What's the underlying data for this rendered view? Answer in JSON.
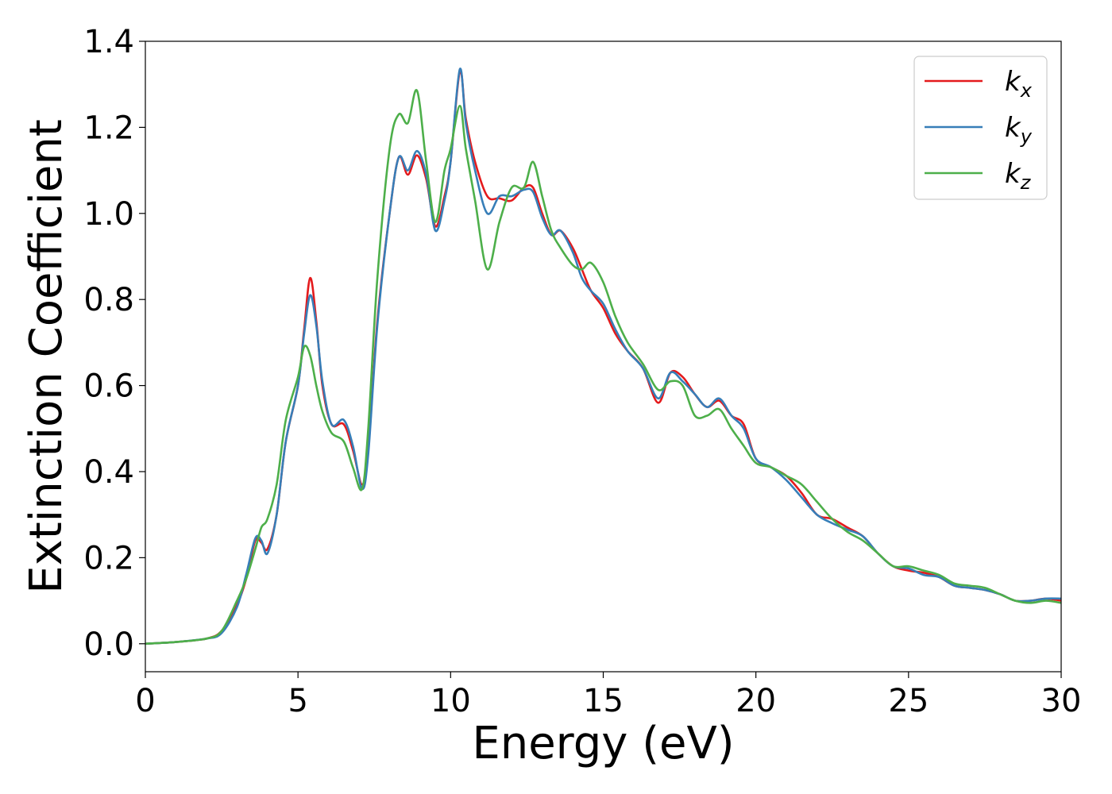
{
  "chart_data": {
    "type": "line",
    "title": "",
    "xlabel": "Energy (eV)",
    "ylabel": "Extinction Coefficient",
    "xlim": [
      0,
      30
    ],
    "ylim": [
      -0.065,
      1.4
    ],
    "xticks": [
      0,
      5,
      10,
      15,
      20,
      25,
      30
    ],
    "xtick_labels": [
      "0",
      "5",
      "10",
      "15",
      "20",
      "25",
      "30"
    ],
    "yticks": [
      0.0,
      0.2,
      0.4,
      0.6,
      0.8,
      1.0,
      1.2,
      1.4
    ],
    "ytick_labels": [
      "0.0",
      "0.2",
      "0.4",
      "0.6",
      "0.8",
      "1.0",
      "1.2",
      "1.4"
    ],
    "grid": false,
    "legend_position": "top-right",
    "series": [
      {
        "name": "k",
        "subscript": "x",
        "color": "#e41a1c",
        "points": [
          [
            0,
            0.0
          ],
          [
            1,
            0.004
          ],
          [
            2,
            0.012
          ],
          [
            2.5,
            0.03
          ],
          [
            3,
            0.09
          ],
          [
            3.3,
            0.15
          ],
          [
            3.6,
            0.24
          ],
          [
            3.8,
            0.235
          ],
          [
            4.0,
            0.22
          ],
          [
            4.3,
            0.3
          ],
          [
            4.6,
            0.47
          ],
          [
            5.0,
            0.6
          ],
          [
            5.2,
            0.73
          ],
          [
            5.4,
            0.85
          ],
          [
            5.6,
            0.75
          ],
          [
            5.8,
            0.6
          ],
          [
            6.1,
            0.51
          ],
          [
            6.5,
            0.51
          ],
          [
            6.8,
            0.45
          ],
          [
            7.1,
            0.37
          ],
          [
            7.3,
            0.45
          ],
          [
            7.6,
            0.75
          ],
          [
            8.0,
            1.0
          ],
          [
            8.3,
            1.13
          ],
          [
            8.6,
            1.09
          ],
          [
            8.9,
            1.135
          ],
          [
            9.2,
            1.08
          ],
          [
            9.5,
            0.97
          ],
          [
            9.8,
            1.04
          ],
          [
            10.0,
            1.12
          ],
          [
            10.3,
            1.33
          ],
          [
            10.5,
            1.22
          ],
          [
            10.8,
            1.12
          ],
          [
            11.2,
            1.04
          ],
          [
            11.6,
            1.035
          ],
          [
            12.0,
            1.03
          ],
          [
            12.4,
            1.06
          ],
          [
            12.7,
            1.06
          ],
          [
            13.0,
            1.0
          ],
          [
            13.3,
            0.95
          ],
          [
            13.6,
            0.96
          ],
          [
            14.0,
            0.92
          ],
          [
            14.3,
            0.87
          ],
          [
            14.6,
            0.82
          ],
          [
            15.0,
            0.78
          ],
          [
            15.4,
            0.72
          ],
          [
            15.8,
            0.68
          ],
          [
            16.3,
            0.64
          ],
          [
            16.8,
            0.56
          ],
          [
            17.2,
            0.63
          ],
          [
            17.6,
            0.62
          ],
          [
            18.0,
            0.58
          ],
          [
            18.4,
            0.55
          ],
          [
            18.8,
            0.565
          ],
          [
            19.2,
            0.53
          ],
          [
            19.6,
            0.51
          ],
          [
            20.0,
            0.43
          ],
          [
            20.5,
            0.41
          ],
          [
            21.0,
            0.39
          ],
          [
            21.5,
            0.35
          ],
          [
            22.0,
            0.3
          ],
          [
            22.5,
            0.29
          ],
          [
            23.0,
            0.27
          ],
          [
            23.5,
            0.25
          ],
          [
            24.0,
            0.21
          ],
          [
            24.5,
            0.18
          ],
          [
            25.0,
            0.17
          ],
          [
            25.5,
            0.165
          ],
          [
            26.0,
            0.155
          ],
          [
            26.5,
            0.135
          ],
          [
            27.0,
            0.13
          ],
          [
            27.5,
            0.125
          ],
          [
            28.0,
            0.115
          ],
          [
            28.5,
            0.1
          ],
          [
            29.0,
            0.1
          ],
          [
            29.5,
            0.105
          ],
          [
            30,
            0.1
          ]
        ]
      },
      {
        "name": "k",
        "subscript": "y",
        "color": "#377eb8",
        "points": [
          [
            0,
            0.0
          ],
          [
            1,
            0.004
          ],
          [
            2,
            0.012
          ],
          [
            2.5,
            0.025
          ],
          [
            3,
            0.085
          ],
          [
            3.3,
            0.16
          ],
          [
            3.6,
            0.245
          ],
          [
            3.8,
            0.24
          ],
          [
            4.0,
            0.21
          ],
          [
            4.3,
            0.3
          ],
          [
            4.6,
            0.47
          ],
          [
            5.0,
            0.6
          ],
          [
            5.2,
            0.72
          ],
          [
            5.4,
            0.81
          ],
          [
            5.6,
            0.74
          ],
          [
            5.8,
            0.61
          ],
          [
            6.1,
            0.51
          ],
          [
            6.5,
            0.52
          ],
          [
            6.8,
            0.46
          ],
          [
            7.1,
            0.36
          ],
          [
            7.3,
            0.44
          ],
          [
            7.6,
            0.74
          ],
          [
            8.0,
            1.0
          ],
          [
            8.3,
            1.13
          ],
          [
            8.6,
            1.1
          ],
          [
            8.9,
            1.145
          ],
          [
            9.2,
            1.09
          ],
          [
            9.5,
            0.96
          ],
          [
            9.8,
            1.03
          ],
          [
            10.0,
            1.12
          ],
          [
            10.3,
            1.335
          ],
          [
            10.5,
            1.21
          ],
          [
            10.8,
            1.1
          ],
          [
            11.2,
            1.0
          ],
          [
            11.6,
            1.04
          ],
          [
            12.0,
            1.04
          ],
          [
            12.4,
            1.055
          ],
          [
            12.7,
            1.05
          ],
          [
            13.0,
            0.99
          ],
          [
            13.3,
            0.95
          ],
          [
            13.6,
            0.96
          ],
          [
            14.0,
            0.91
          ],
          [
            14.3,
            0.85
          ],
          [
            14.6,
            0.82
          ],
          [
            15.0,
            0.79
          ],
          [
            15.4,
            0.73
          ],
          [
            15.8,
            0.68
          ],
          [
            16.3,
            0.64
          ],
          [
            16.8,
            0.57
          ],
          [
            17.2,
            0.63
          ],
          [
            17.6,
            0.61
          ],
          [
            18.0,
            0.58
          ],
          [
            18.4,
            0.55
          ],
          [
            18.8,
            0.57
          ],
          [
            19.2,
            0.53
          ],
          [
            19.6,
            0.5
          ],
          [
            20.0,
            0.43
          ],
          [
            20.5,
            0.41
          ],
          [
            21.0,
            0.38
          ],
          [
            21.5,
            0.34
          ],
          [
            22.0,
            0.3
          ],
          [
            22.5,
            0.28
          ],
          [
            23.0,
            0.265
          ],
          [
            23.5,
            0.25
          ],
          [
            24.0,
            0.21
          ],
          [
            24.5,
            0.18
          ],
          [
            25.0,
            0.175
          ],
          [
            25.5,
            0.16
          ],
          [
            26.0,
            0.155
          ],
          [
            26.5,
            0.135
          ],
          [
            27.0,
            0.13
          ],
          [
            27.5,
            0.125
          ],
          [
            28.0,
            0.115
          ],
          [
            28.5,
            0.1
          ],
          [
            29.0,
            0.1
          ],
          [
            29.5,
            0.105
          ],
          [
            30,
            0.105
          ]
        ]
      },
      {
        "name": "k",
        "subscript": "z",
        "color": "#4daf4a",
        "points": [
          [
            0,
            0.0
          ],
          [
            1,
            0.004
          ],
          [
            2,
            0.012
          ],
          [
            2.5,
            0.03
          ],
          [
            3,
            0.1
          ],
          [
            3.3,
            0.15
          ],
          [
            3.6,
            0.22
          ],
          [
            3.8,
            0.27
          ],
          [
            4.0,
            0.29
          ],
          [
            4.3,
            0.37
          ],
          [
            4.6,
            0.52
          ],
          [
            5.0,
            0.62
          ],
          [
            5.2,
            0.69
          ],
          [
            5.4,
            0.67
          ],
          [
            5.6,
            0.6
          ],
          [
            5.8,
            0.54
          ],
          [
            6.1,
            0.49
          ],
          [
            6.5,
            0.47
          ],
          [
            6.8,
            0.41
          ],
          [
            7.1,
            0.36
          ],
          [
            7.3,
            0.5
          ],
          [
            7.6,
            0.85
          ],
          [
            8.0,
            1.15
          ],
          [
            8.3,
            1.23
          ],
          [
            8.6,
            1.21
          ],
          [
            8.9,
            1.285
          ],
          [
            9.2,
            1.12
          ],
          [
            9.5,
            0.98
          ],
          [
            9.8,
            1.1
          ],
          [
            10.0,
            1.15
          ],
          [
            10.3,
            1.25
          ],
          [
            10.5,
            1.15
          ],
          [
            10.8,
            1.03
          ],
          [
            11.2,
            0.87
          ],
          [
            11.6,
            0.98
          ],
          [
            12.0,
            1.06
          ],
          [
            12.4,
            1.06
          ],
          [
            12.7,
            1.12
          ],
          [
            13.0,
            1.04
          ],
          [
            13.3,
            0.96
          ],
          [
            13.6,
            0.92
          ],
          [
            14.0,
            0.88
          ],
          [
            14.3,
            0.87
          ],
          [
            14.6,
            0.885
          ],
          [
            15.0,
            0.84
          ],
          [
            15.4,
            0.76
          ],
          [
            15.8,
            0.7
          ],
          [
            16.3,
            0.65
          ],
          [
            16.8,
            0.59
          ],
          [
            17.2,
            0.61
          ],
          [
            17.6,
            0.6
          ],
          [
            18.0,
            0.53
          ],
          [
            18.4,
            0.53
          ],
          [
            18.8,
            0.545
          ],
          [
            19.2,
            0.5
          ],
          [
            19.6,
            0.46
          ],
          [
            20.0,
            0.42
          ],
          [
            20.5,
            0.41
          ],
          [
            21.0,
            0.39
          ],
          [
            21.5,
            0.37
          ],
          [
            22.0,
            0.33
          ],
          [
            22.5,
            0.29
          ],
          [
            23.0,
            0.26
          ],
          [
            23.5,
            0.24
          ],
          [
            24.0,
            0.21
          ],
          [
            24.5,
            0.18
          ],
          [
            25.0,
            0.18
          ],
          [
            25.5,
            0.17
          ],
          [
            26.0,
            0.16
          ],
          [
            26.5,
            0.14
          ],
          [
            27.0,
            0.135
          ],
          [
            27.5,
            0.13
          ],
          [
            28.0,
            0.115
          ],
          [
            28.5,
            0.1
          ],
          [
            29.0,
            0.095
          ],
          [
            29.5,
            0.1
          ],
          [
            30,
            0.095
          ]
        ]
      }
    ]
  }
}
